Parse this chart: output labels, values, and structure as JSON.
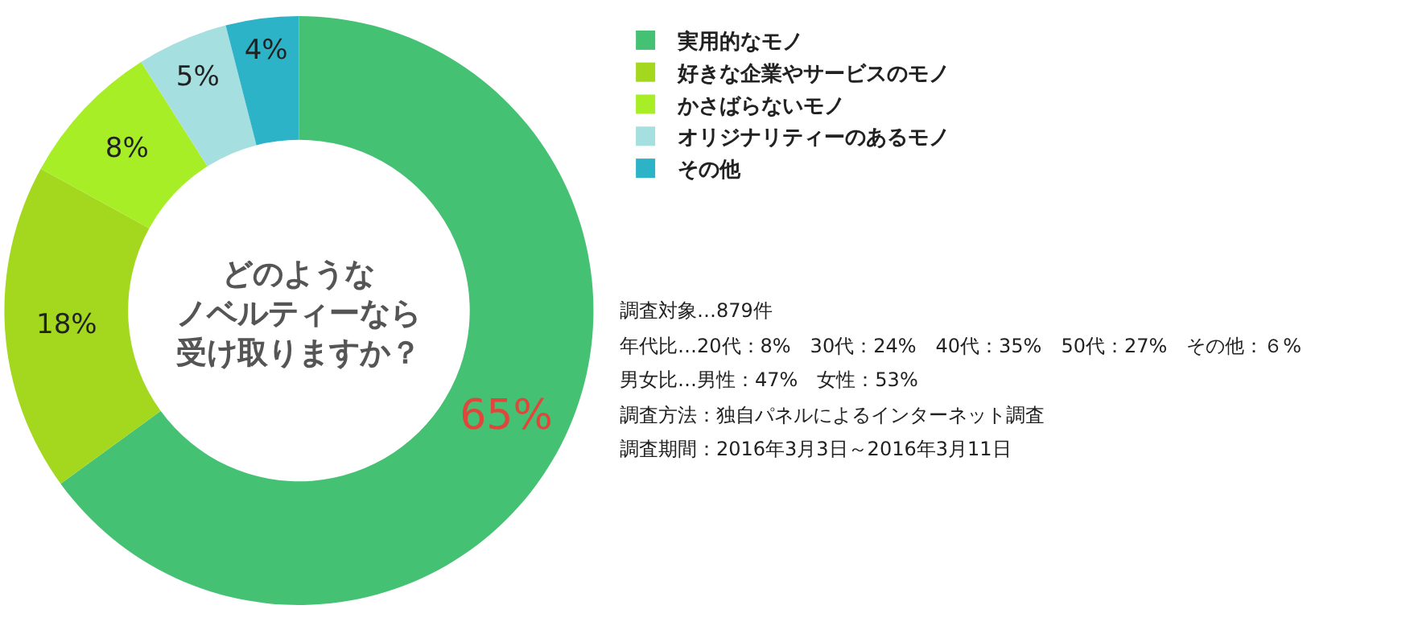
{
  "chart_data": {
    "type": "donut",
    "title": "どのようなノベルティーなら受け取りますか？",
    "categories": [
      "実用的なモノ",
      "好きな企業やサービスのモノ",
      "かさばらないモノ",
      "オリジナリティーのあるモノ",
      "その他"
    ],
    "values": [
      65,
      18,
      8,
      5,
      4
    ],
    "colors": [
      "#45c173",
      "#a3d81f",
      "#a8ee27",
      "#a5dfdf",
      "#2db3c8"
    ],
    "value_labels": [
      "65%",
      "18%",
      "8%",
      "5%",
      "4%"
    ],
    "legend": "top right",
    "annotations": [
      "調査対象…879件",
      "年代比…20代：8%　30代：24%　40代：35%　50代：27%　その他：６%",
      "男女比…男性：47%　女性：53%",
      "調査方法：独自パネルによるインターネット調査",
      "調査期間：2016年3月3日～2016年3月11日"
    ]
  }
}
